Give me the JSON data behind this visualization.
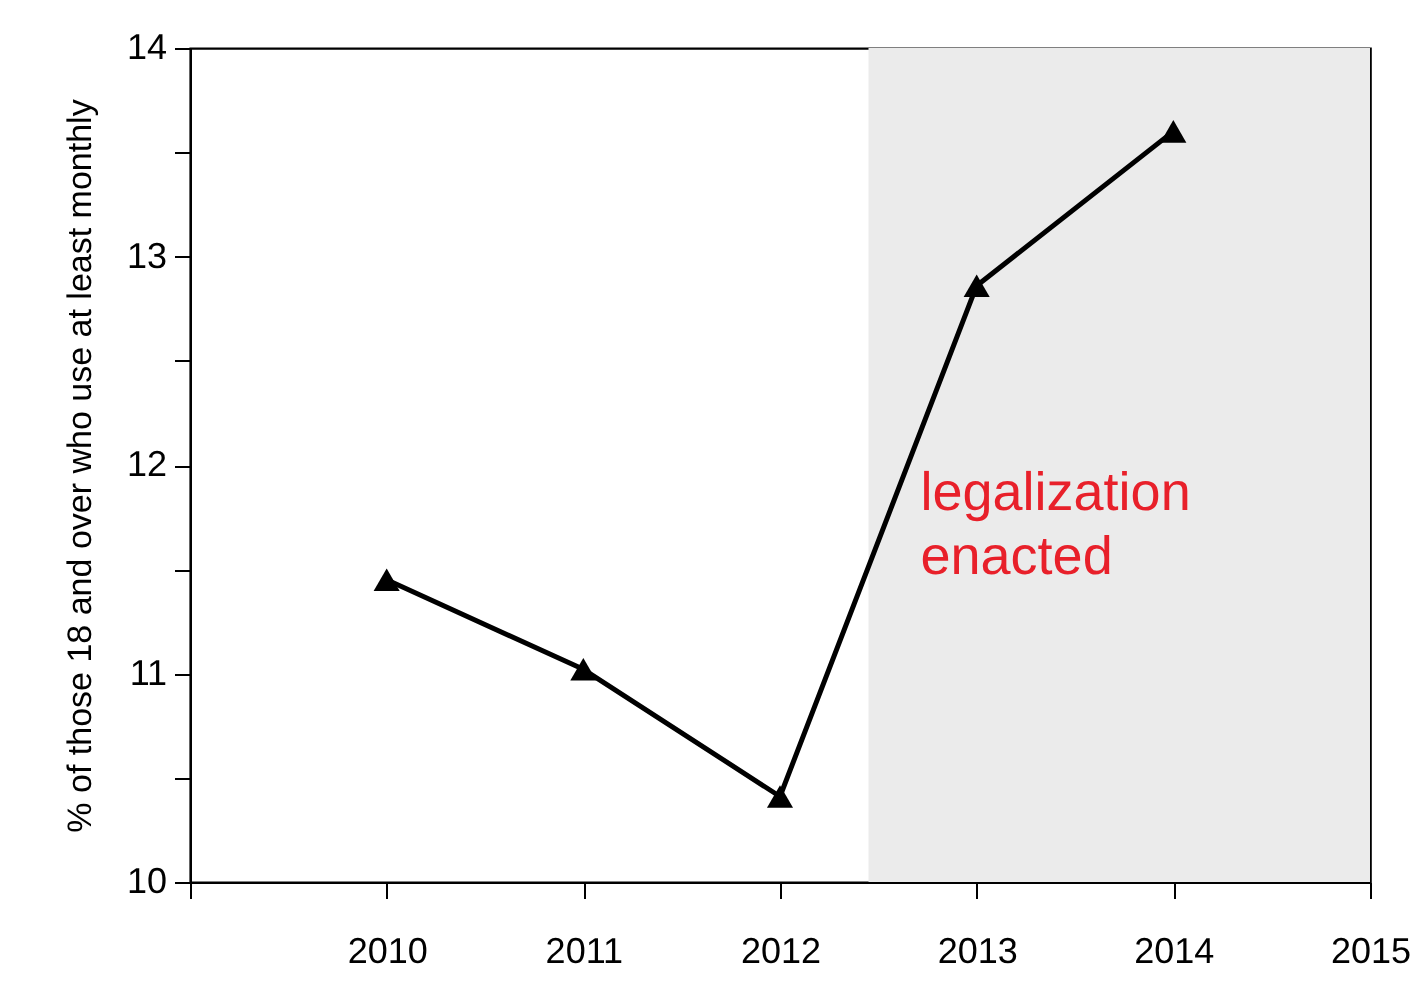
{
  "chart_data": {
    "type": "line",
    "ylabel": "% of those 18 and over who use at least monthly",
    "x": [
      2010,
      2011,
      2012,
      2013,
      2014
    ],
    "series": [
      {
        "color": "#000000",
        "values": [
          11.45,
          11.02,
          10.41,
          12.86,
          13.6
        ]
      }
    ],
    "xlim": [
      2009,
      2015
    ],
    "xticks": [
      {
        "value": 2009,
        "label": null
      },
      2010,
      2011,
      2012,
      2013,
      2014,
      2015
    ],
    "ylim": [
      10,
      14
    ],
    "yticks": [
      10,
      {
        "value": 10.5,
        "label": null
      },
      11,
      {
        "value": 11.5,
        "label": null
      },
      12,
      {
        "value": 12.5,
        "label": null
      },
      13,
      {
        "value": 13.5,
        "label": null
      },
      14
    ],
    "bands": [
      {
        "axis": "x",
        "from": 2012.45,
        "to": 2015,
        "label": "legalization enacted",
        "color": "#ebebeb"
      }
    ],
    "marker": "triangle",
    "line_style": "solid",
    "grid": false
  }
}
